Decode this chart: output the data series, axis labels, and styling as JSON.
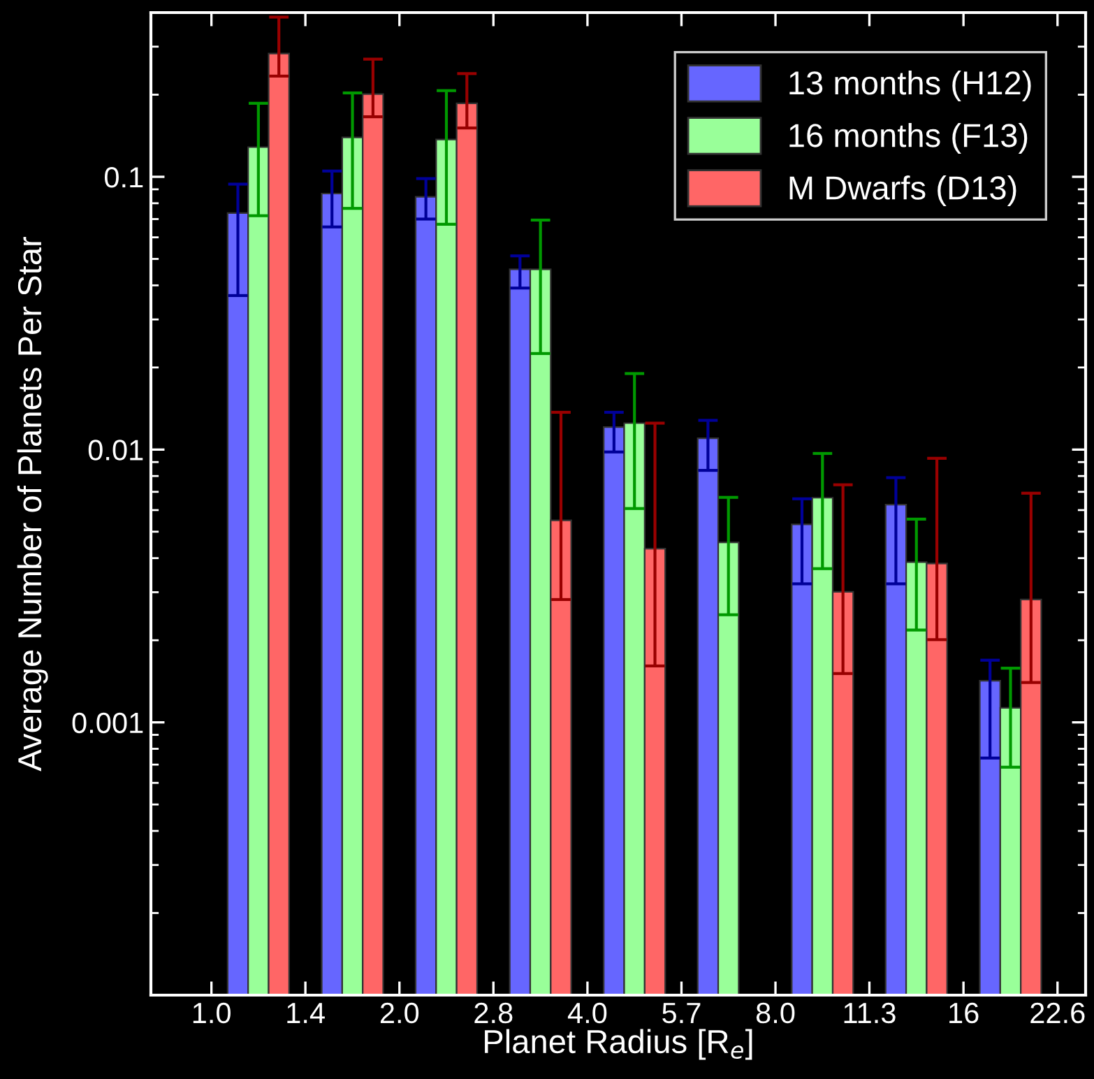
{
  "chart_data": {
    "type": "bar",
    "xlabel": "Planet Radius [R$_{e}$]",
    "ylabel": "Average Number of Planets Per Star",
    "log": "xy",
    "xlim": [
      0.8,
      25.1
    ],
    "ylim": [
      0.0001,
      0.4
    ],
    "xticks": [
      {
        "value": 1,
        "label": "1.0"
      },
      {
        "value": 1.414,
        "label": "1.4"
      },
      {
        "value": 2,
        "label": "2.0"
      },
      {
        "value": 2.828,
        "label": "2.8"
      },
      {
        "value": 4,
        "label": "4.0"
      },
      {
        "value": 5.657,
        "label": "5.7"
      },
      {
        "value": 8,
        "label": "8.0"
      },
      {
        "value": 11.31,
        "label": "11.3"
      },
      16,
      {
        "value": 22.63,
        "label": "22.6"
      }
    ],
    "yticks": [
      0.001,
      0.01,
      0.1
    ],
    "x": [
      1.189,
      1.682,
      2.378,
      3.364,
      4.757,
      6.727,
      9.514,
      13.45,
      19.03
    ],
    "grid": false,
    "legend": "top right",
    "series": [
      {
        "name": "13 months (H12)",
        "color": "#6666ff",
        "values": [
          0.0736,
          0.0868,
          0.0845,
          0.0458,
          0.0121,
          0.011,
          0.00532,
          0.00628,
          0.00142
        ],
        "errors": [
          [
            0.0367,
            0.094
          ],
          [
            0.0655,
            0.105
          ],
          [
            0.07,
            0.0985
          ],
          [
            0.0391,
            0.0513
          ],
          [
            0.0098,
            0.0137
          ],
          [
            0.00839,
            0.0128
          ],
          [
            0.00322,
            0.0066
          ],
          [
            0.00322,
            0.00789
          ],
          [
            0.00074,
            0.00169
          ]
        ]
      },
      {
        "name": "16 months (F13)",
        "color": "#99ff99",
        "values": [
          0.1285,
          0.1395,
          0.137,
          0.0458,
          0.0125,
          0.00457,
          0.00666,
          0.00387,
          0.00113
        ],
        "errors": [
          [
            0.072,
            0.186
          ],
          [
            0.0766,
            0.203
          ],
          [
            0.067,
            0.207
          ],
          [
            0.0225,
            0.0694
          ],
          [
            0.00608,
            0.019
          ],
          [
            0.00248,
            0.00668
          ],
          [
            0.00366,
            0.00968
          ],
          [
            0.00218,
            0.00556
          ],
          [
            0.000685,
            0.00158
          ]
        ]
      },
      {
        "name": "M Dwarfs (D13)",
        "color": "#ff6666",
        "values": [
          0.283,
          0.201,
          0.186,
          0.0055,
          0.00433,
          null,
          0.00301,
          0.00382,
          0.00282
        ],
        "errors": [
          [
            0.234,
            0.385
          ],
          [
            0.166,
            0.27
          ],
          [
            0.151,
            0.239
          ],
          [
            0.00282,
            0.0137
          ],
          [
            0.00161,
            0.0125
          ],
          null,
          [
            0.00151,
            0.00743
          ],
          [
            0.00201,
            0.00929
          ],
          [
            0.0014,
            0.00692
          ]
        ]
      }
    ]
  }
}
